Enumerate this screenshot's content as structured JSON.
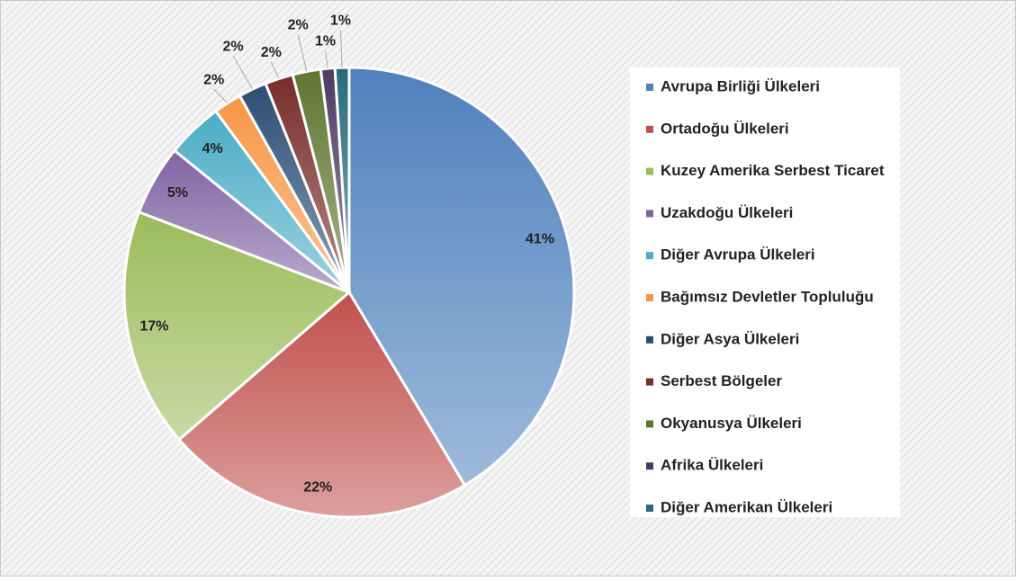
{
  "chart_data": {
    "type": "pie",
    "categories": [
      "Avrupa Birliği Ülkeleri",
      "Ortadoğu Ülkeleri",
      "Kuzey Amerika Serbest Ticaret",
      "Uzakdoğu Ülkeleri",
      "Diğer Avrupa Ülkeleri",
      "Bağımsız Devletler Topluluğu",
      "Diğer Asya Ülkeleri",
      "Serbest Bölgeler",
      "Okyanusya Ülkeleri",
      "Afrika Ülkeleri",
      "Diğer Amerikan Ülkeleri"
    ],
    "values": [
      41,
      22,
      17,
      5,
      4,
      2,
      2,
      2,
      2,
      1,
      1
    ],
    "value_labels": [
      "41%",
      "22%",
      "17%",
      "5%",
      "4%",
      "2%",
      "2%",
      "2%",
      "2%",
      "1%",
      "1%"
    ],
    "colors": [
      "#4f81bd",
      "#c0504d",
      "#9bbb59",
      "#8064a2",
      "#4bacc6",
      "#f79646",
      "#2c4d75",
      "#772c2a",
      "#5f7530",
      "#4d3b62",
      "#276a7c"
    ],
    "legend": "right"
  }
}
